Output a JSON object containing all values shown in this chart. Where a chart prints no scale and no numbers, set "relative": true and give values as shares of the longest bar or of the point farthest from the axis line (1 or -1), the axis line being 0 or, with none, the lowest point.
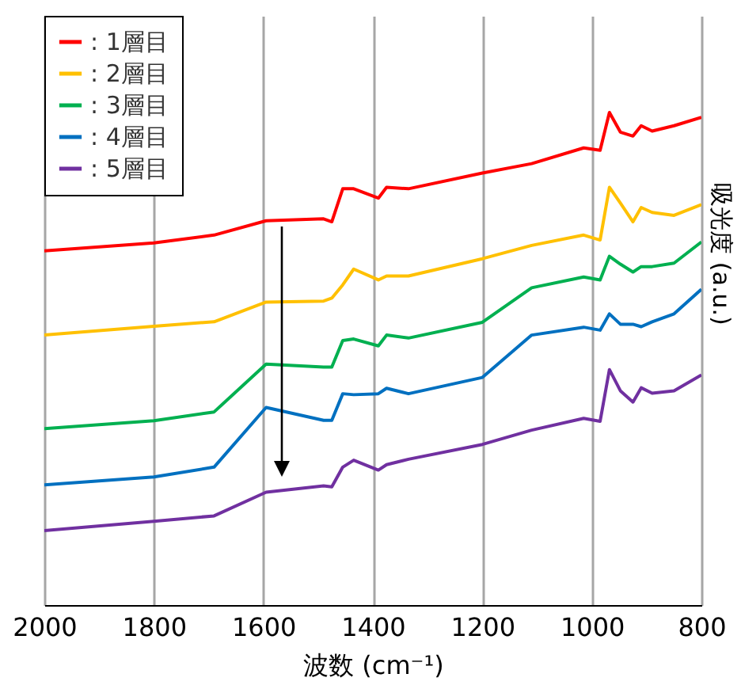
{
  "chart_data": {
    "type": "line",
    "xlabel": "波数 (cm⁻¹)",
    "ylabel": "吸光度 (a.u.)",
    "relative": true,
    "xlim": [
      2000,
      800
    ],
    "xticks": [
      2000,
      1800,
      1600,
      1400,
      1200,
      1000,
      800
    ],
    "grid": "x",
    "legend": "top left",
    "x": [
      2000,
      1800,
      1690,
      1595,
      1490,
      1475,
      1455,
      1435,
      1390,
      1375,
      1335,
      1200,
      1110,
      1015,
      985,
      968,
      948,
      925,
      910,
      890,
      850,
      800
    ],
    "series": [
      {
        "name": ": 1層目",
        "color": "#ff0000",
        "values": [
          0.719,
          0.735,
          0.751,
          0.78,
          0.784,
          0.778,
          0.845,
          0.845,
          0.826,
          0.848,
          0.845,
          0.877,
          0.896,
          0.928,
          0.923,
          1.0,
          0.96,
          0.952,
          0.973,
          0.962,
          0.973,
          0.99
        ]
      },
      {
        "name": ": 2層目",
        "color": "#ffc000",
        "values": [
          0.548,
          0.566,
          0.575,
          0.615,
          0.617,
          0.623,
          0.65,
          0.682,
          0.66,
          0.668,
          0.668,
          0.703,
          0.73,
          0.751,
          0.741,
          0.848,
          0.816,
          0.778,
          0.807,
          0.797,
          0.791,
          0.813
        ]
      },
      {
        "name": ": 3層目",
        "color": "#00b050",
        "values": [
          0.358,
          0.374,
          0.392,
          0.489,
          0.483,
          0.483,
          0.537,
          0.54,
          0.526,
          0.548,
          0.542,
          0.574,
          0.644,
          0.666,
          0.66,
          0.708,
          0.692,
          0.676,
          0.687,
          0.687,
          0.694,
          0.737
        ]
      },
      {
        "name": ": 4層目",
        "color": "#0070c0",
        "values": [
          0.244,
          0.26,
          0.28,
          0.401,
          0.375,
          0.375,
          0.429,
          0.427,
          0.429,
          0.44,
          0.429,
          0.462,
          0.548,
          0.564,
          0.558,
          0.591,
          0.57,
          0.57,
          0.565,
          0.575,
          0.591,
          0.641
        ]
      },
      {
        "name": ": 5層目",
        "color": "#7030a0",
        "values": [
          0.151,
          0.17,
          0.181,
          0.229,
          0.242,
          0.24,
          0.28,
          0.294,
          0.274,
          0.285,
          0.296,
          0.326,
          0.355,
          0.379,
          0.373,
          0.478,
          0.435,
          0.412,
          0.441,
          0.43,
          0.435,
          0.467
        ]
      }
    ]
  }
}
